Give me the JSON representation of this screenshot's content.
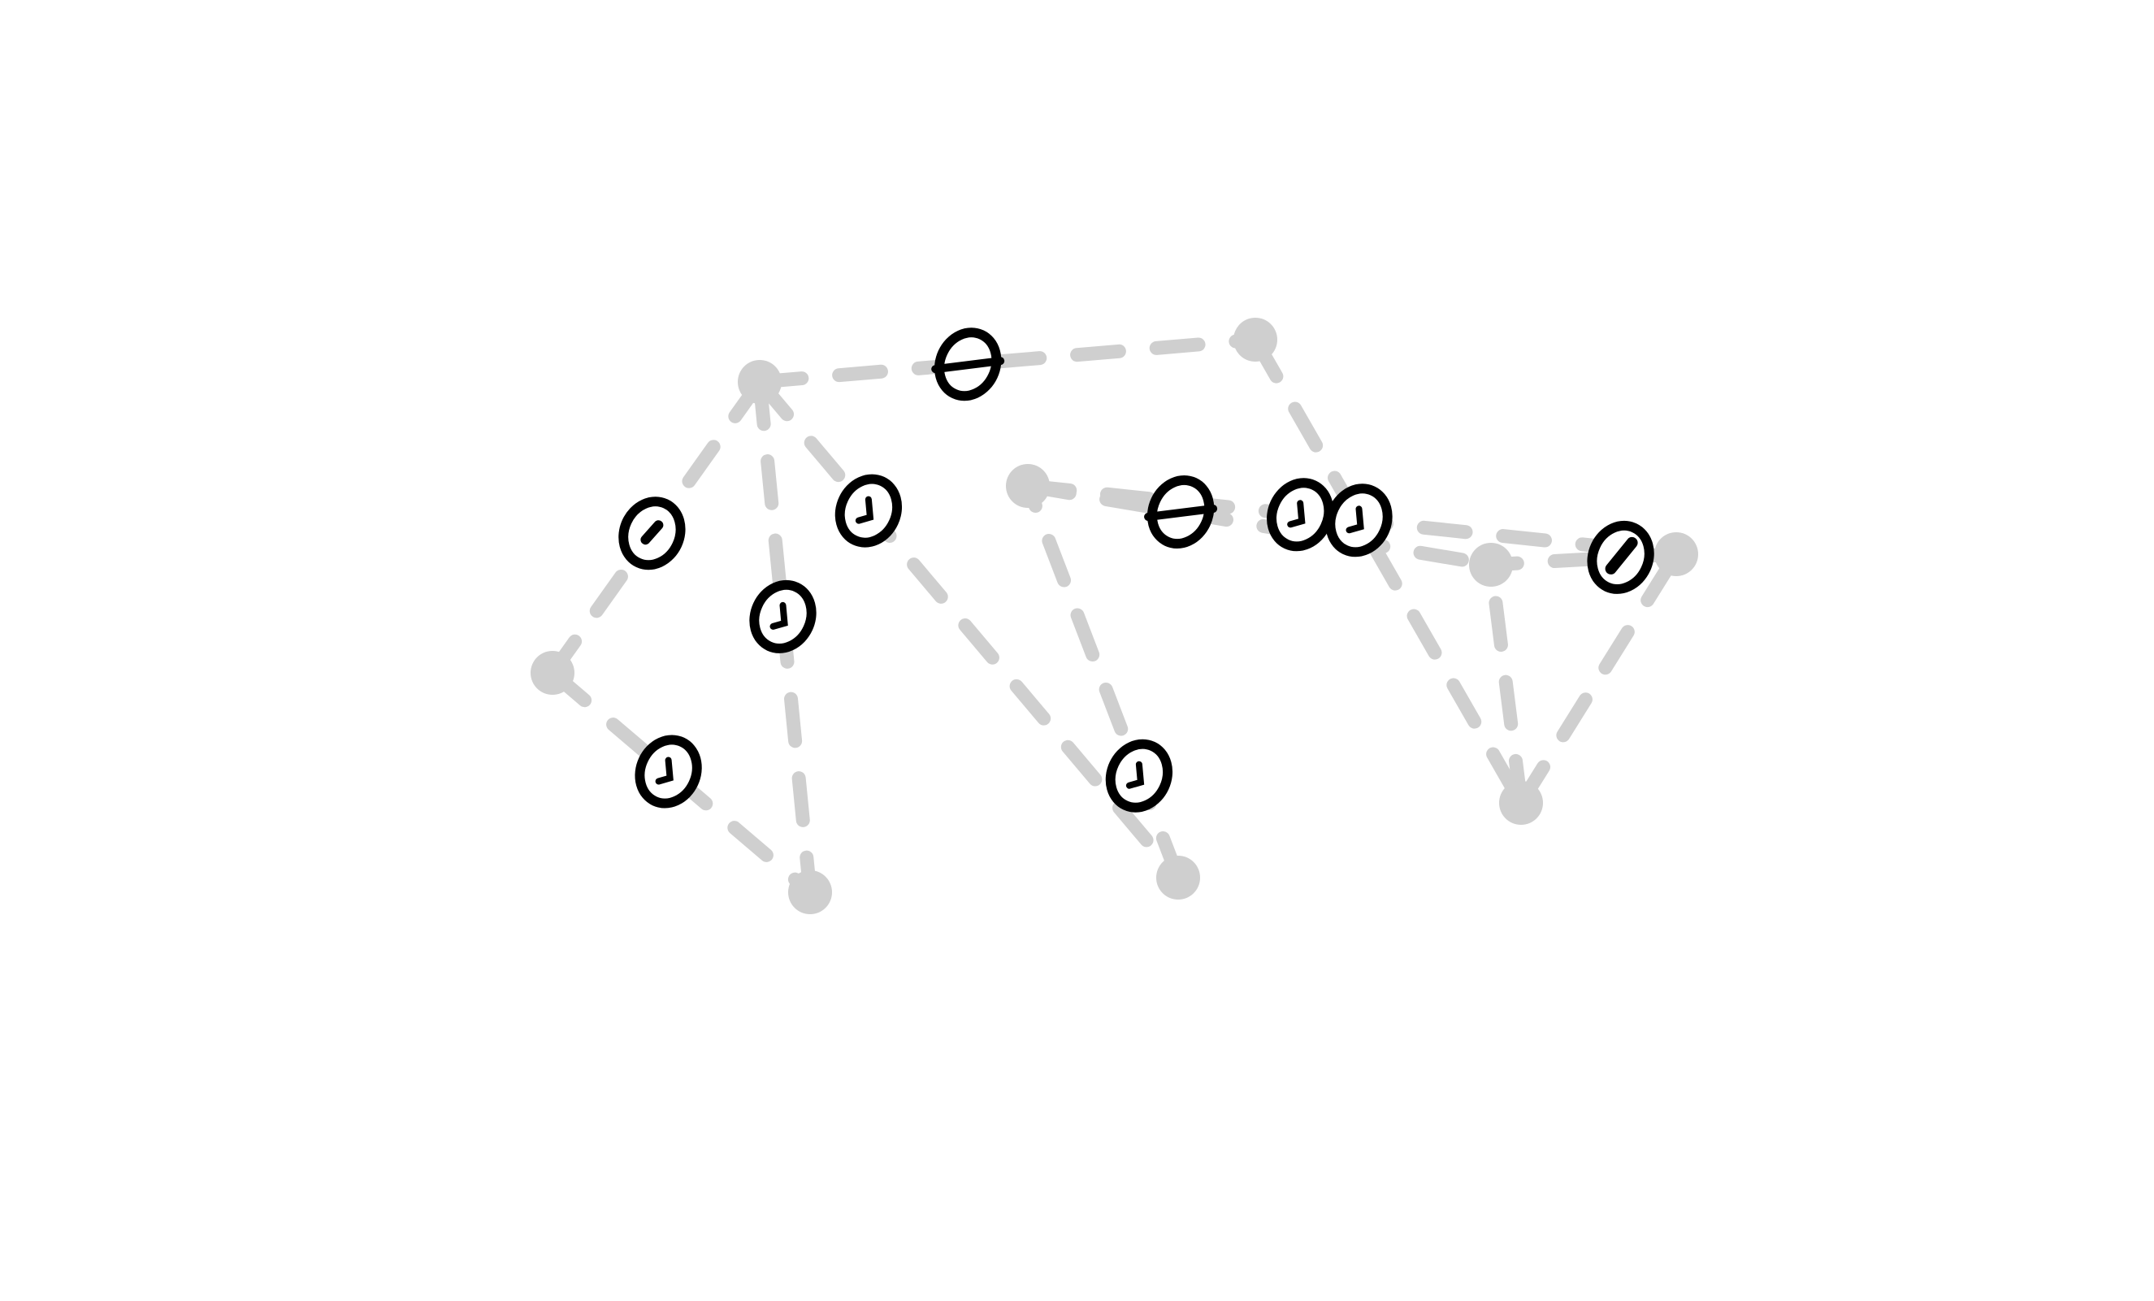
{
  "colors": {
    "background": "#ffffff",
    "graph": "#cfcfcf",
    "marker": "#000000"
  },
  "nodes": [
    {
      "id": "n1"
    },
    {
      "id": "n2"
    },
    {
      "id": "n3"
    },
    {
      "id": "n4"
    },
    {
      "id": "n5"
    },
    {
      "id": "n6"
    },
    {
      "id": "n7"
    },
    {
      "id": "n8"
    },
    {
      "id": "n9"
    }
  ],
  "edges": [
    {
      "id": "e1",
      "from": "n1",
      "to": "n5",
      "marker": {
        "glyph": "theta"
      }
    },
    {
      "id": "e2",
      "from": "n1",
      "to": "n2",
      "marker": {
        "glyph": "dot"
      }
    },
    {
      "id": "e3",
      "from": "n1",
      "to": "n6",
      "marker": {
        "glyph": "hook"
      }
    },
    {
      "id": "e4",
      "from": "n1",
      "to": "n3",
      "marker": {
        "glyph": "hook"
      }
    },
    {
      "id": "e5",
      "from": "n2",
      "to": "n3",
      "marker": {
        "glyph": "hook"
      }
    },
    {
      "id": "e6",
      "from": "n5",
      "to": "n7",
      "marker": {
        "glyph": "hook"
      }
    },
    {
      "id": "e7",
      "from": "n6",
      "to": "n4",
      "marker": {
        "glyph": "hook"
      }
    },
    {
      "id": "e8",
      "from": "n4",
      "to": "n9",
      "marker": {
        "glyph": "hook"
      }
    },
    {
      "id": "e9",
      "from": "n4",
      "to": "n8",
      "marker": {
        "glyph": "theta"
      }
    },
    {
      "id": "e10",
      "from": "n9",
      "to": "n8",
      "marker": {
        "glyph": "slash"
      }
    },
    {
      "id": "e11",
      "from": "n7",
      "to": "n8",
      "marker": null
    },
    {
      "id": "e12",
      "from": "n7",
      "to": "n9",
      "marker": null
    }
  ]
}
